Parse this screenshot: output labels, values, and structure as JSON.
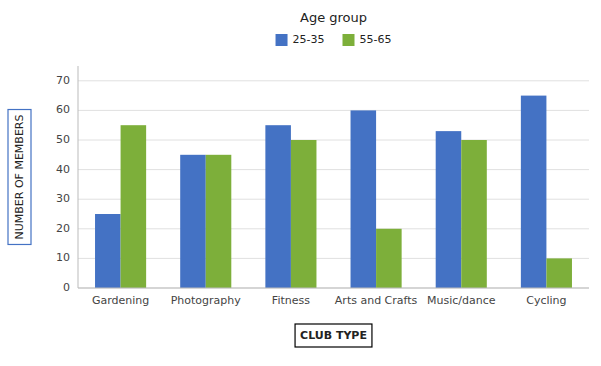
{
  "chart_data": {
    "type": "bar",
    "legend_title": "Age group",
    "xlabel": "CLUB TYPE",
    "ylabel": "NUMBER OF MEMBERS",
    "categories": [
      "Gardening",
      "Photography",
      "Fitness",
      "Arts and Crafts",
      "Music/dance",
      "Cycling"
    ],
    "series": [
      {
        "name": "25-35",
        "color": "#4472C4",
        "values": [
          25,
          45,
          55,
          60,
          53,
          65
        ]
      },
      {
        "name": "55-65",
        "color": "#7DAF3A",
        "values": [
          55,
          45,
          50,
          20,
          50,
          10
        ]
      }
    ],
    "ylim": [
      0,
      75
    ],
    "yticks": [
      0,
      10,
      20,
      30,
      40,
      50,
      60,
      70
    ],
    "grid": true,
    "legend": "top"
  }
}
